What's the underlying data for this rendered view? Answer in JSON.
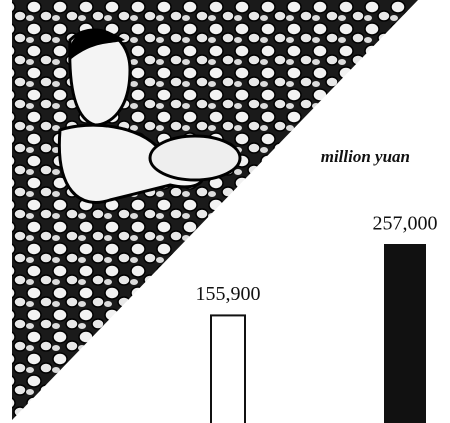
{
  "chart_data": {
    "type": "bar",
    "unit": "million yuan",
    "categories": [
      null,
      null
    ],
    "series": [
      {
        "values": [
          155900,
          257000
        ],
        "value_labels": [
          "155,900",
          "257,000"
        ],
        "colors": [
          "#ffffff",
          "#111111"
        ]
      }
    ]
  }
}
